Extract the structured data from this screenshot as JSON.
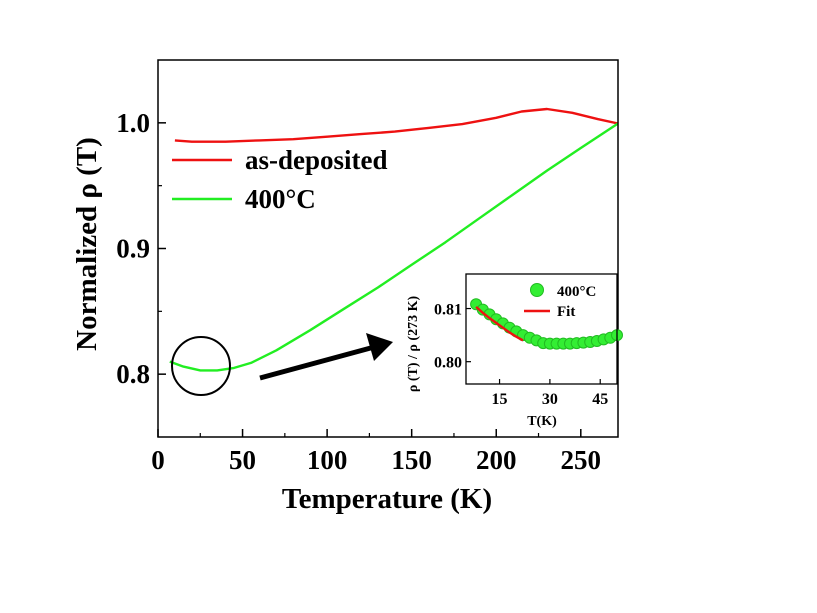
{
  "chart_data": [
    {
      "type": "line",
      "xlabel": "Temperature (K)",
      "ylabel": "Normalized ρ (T)",
      "xlim": [
        0,
        272
      ],
      "ylim": [
        0.75,
        1.05
      ],
      "xticks": [
        0,
        50,
        100,
        150,
        200,
        250
      ],
      "xtick_labels": [
        "0",
        "50",
        "100",
        "150",
        "200",
        "250"
      ],
      "yticks": [
        0.8,
        0.9,
        1.0
      ],
      "ytick_labels": [
        "0.8",
        "0.9",
        "1.0"
      ],
      "legend_position": "upper-left",
      "series": [
        {
          "name": "as-deposited",
          "color": "#ee1111",
          "x": [
            10,
            20,
            40,
            60,
            80,
            100,
            120,
            140,
            160,
            180,
            200,
            215,
            230,
            245,
            260,
            272
          ],
          "y": [
            0.986,
            0.985,
            0.985,
            0.986,
            0.987,
            0.989,
            0.991,
            0.993,
            0.996,
            0.999,
            1.004,
            1.009,
            1.011,
            1.008,
            1.003,
            0.9995
          ]
        },
        {
          "name": "400°C",
          "color": "#22ee22",
          "x": [
            7,
            15,
            25,
            35,
            45,
            55,
            70,
            90,
            110,
            130,
            150,
            170,
            190,
            210,
            230,
            250,
            272
          ],
          "y": [
            0.81,
            0.806,
            0.803,
            0.803,
            0.805,
            0.809,
            0.819,
            0.835,
            0.852,
            0.869,
            0.887,
            0.905,
            0.924,
            0.943,
            0.962,
            0.98,
            0.9995
          ]
        }
      ],
      "annotation": "circle around minimum near 25 K with arrow pointing to inset"
    },
    {
      "type": "scatter",
      "role": "inset",
      "xlabel": "T(K)",
      "ylabel": "ρ (T) / ρ (273 K)",
      "xlim": [
        5,
        50
      ],
      "ylim": [
        0.7958,
        0.8165
      ],
      "xticks": [
        15,
        30,
        45
      ],
      "xtick_labels": [
        "15",
        "30",
        "45"
      ],
      "yticks": [
        0.8,
        0.81
      ],
      "ytick_labels": [
        "0.80",
        "0.81"
      ],
      "series": [
        {
          "name": "400°C",
          "style": "markers",
          "color": "#33ee33",
          "x": [
            8,
            10,
            12,
            14,
            16,
            18,
            20,
            22,
            24,
            26,
            28,
            30,
            32,
            34,
            36,
            38,
            40,
            42,
            44,
            46,
            48,
            50
          ],
          "y": [
            0.8108,
            0.8098,
            0.8089,
            0.808,
            0.8072,
            0.8064,
            0.8057,
            0.805,
            0.8045,
            0.804,
            0.8035,
            0.8034,
            0.8034,
            0.8034,
            0.8034,
            0.8035,
            0.8036,
            0.8037,
            0.8039,
            0.8042,
            0.8045,
            0.805
          ]
        },
        {
          "name": "Fit",
          "style": "line",
          "color": "#ee1111",
          "x": [
            8,
            10,
            12,
            14,
            16,
            18,
            20,
            22
          ],
          "y": [
            0.8103,
            0.8092,
            0.8082,
            0.8073,
            0.8064,
            0.8055,
            0.8047,
            0.804
          ]
        }
      ]
    }
  ]
}
